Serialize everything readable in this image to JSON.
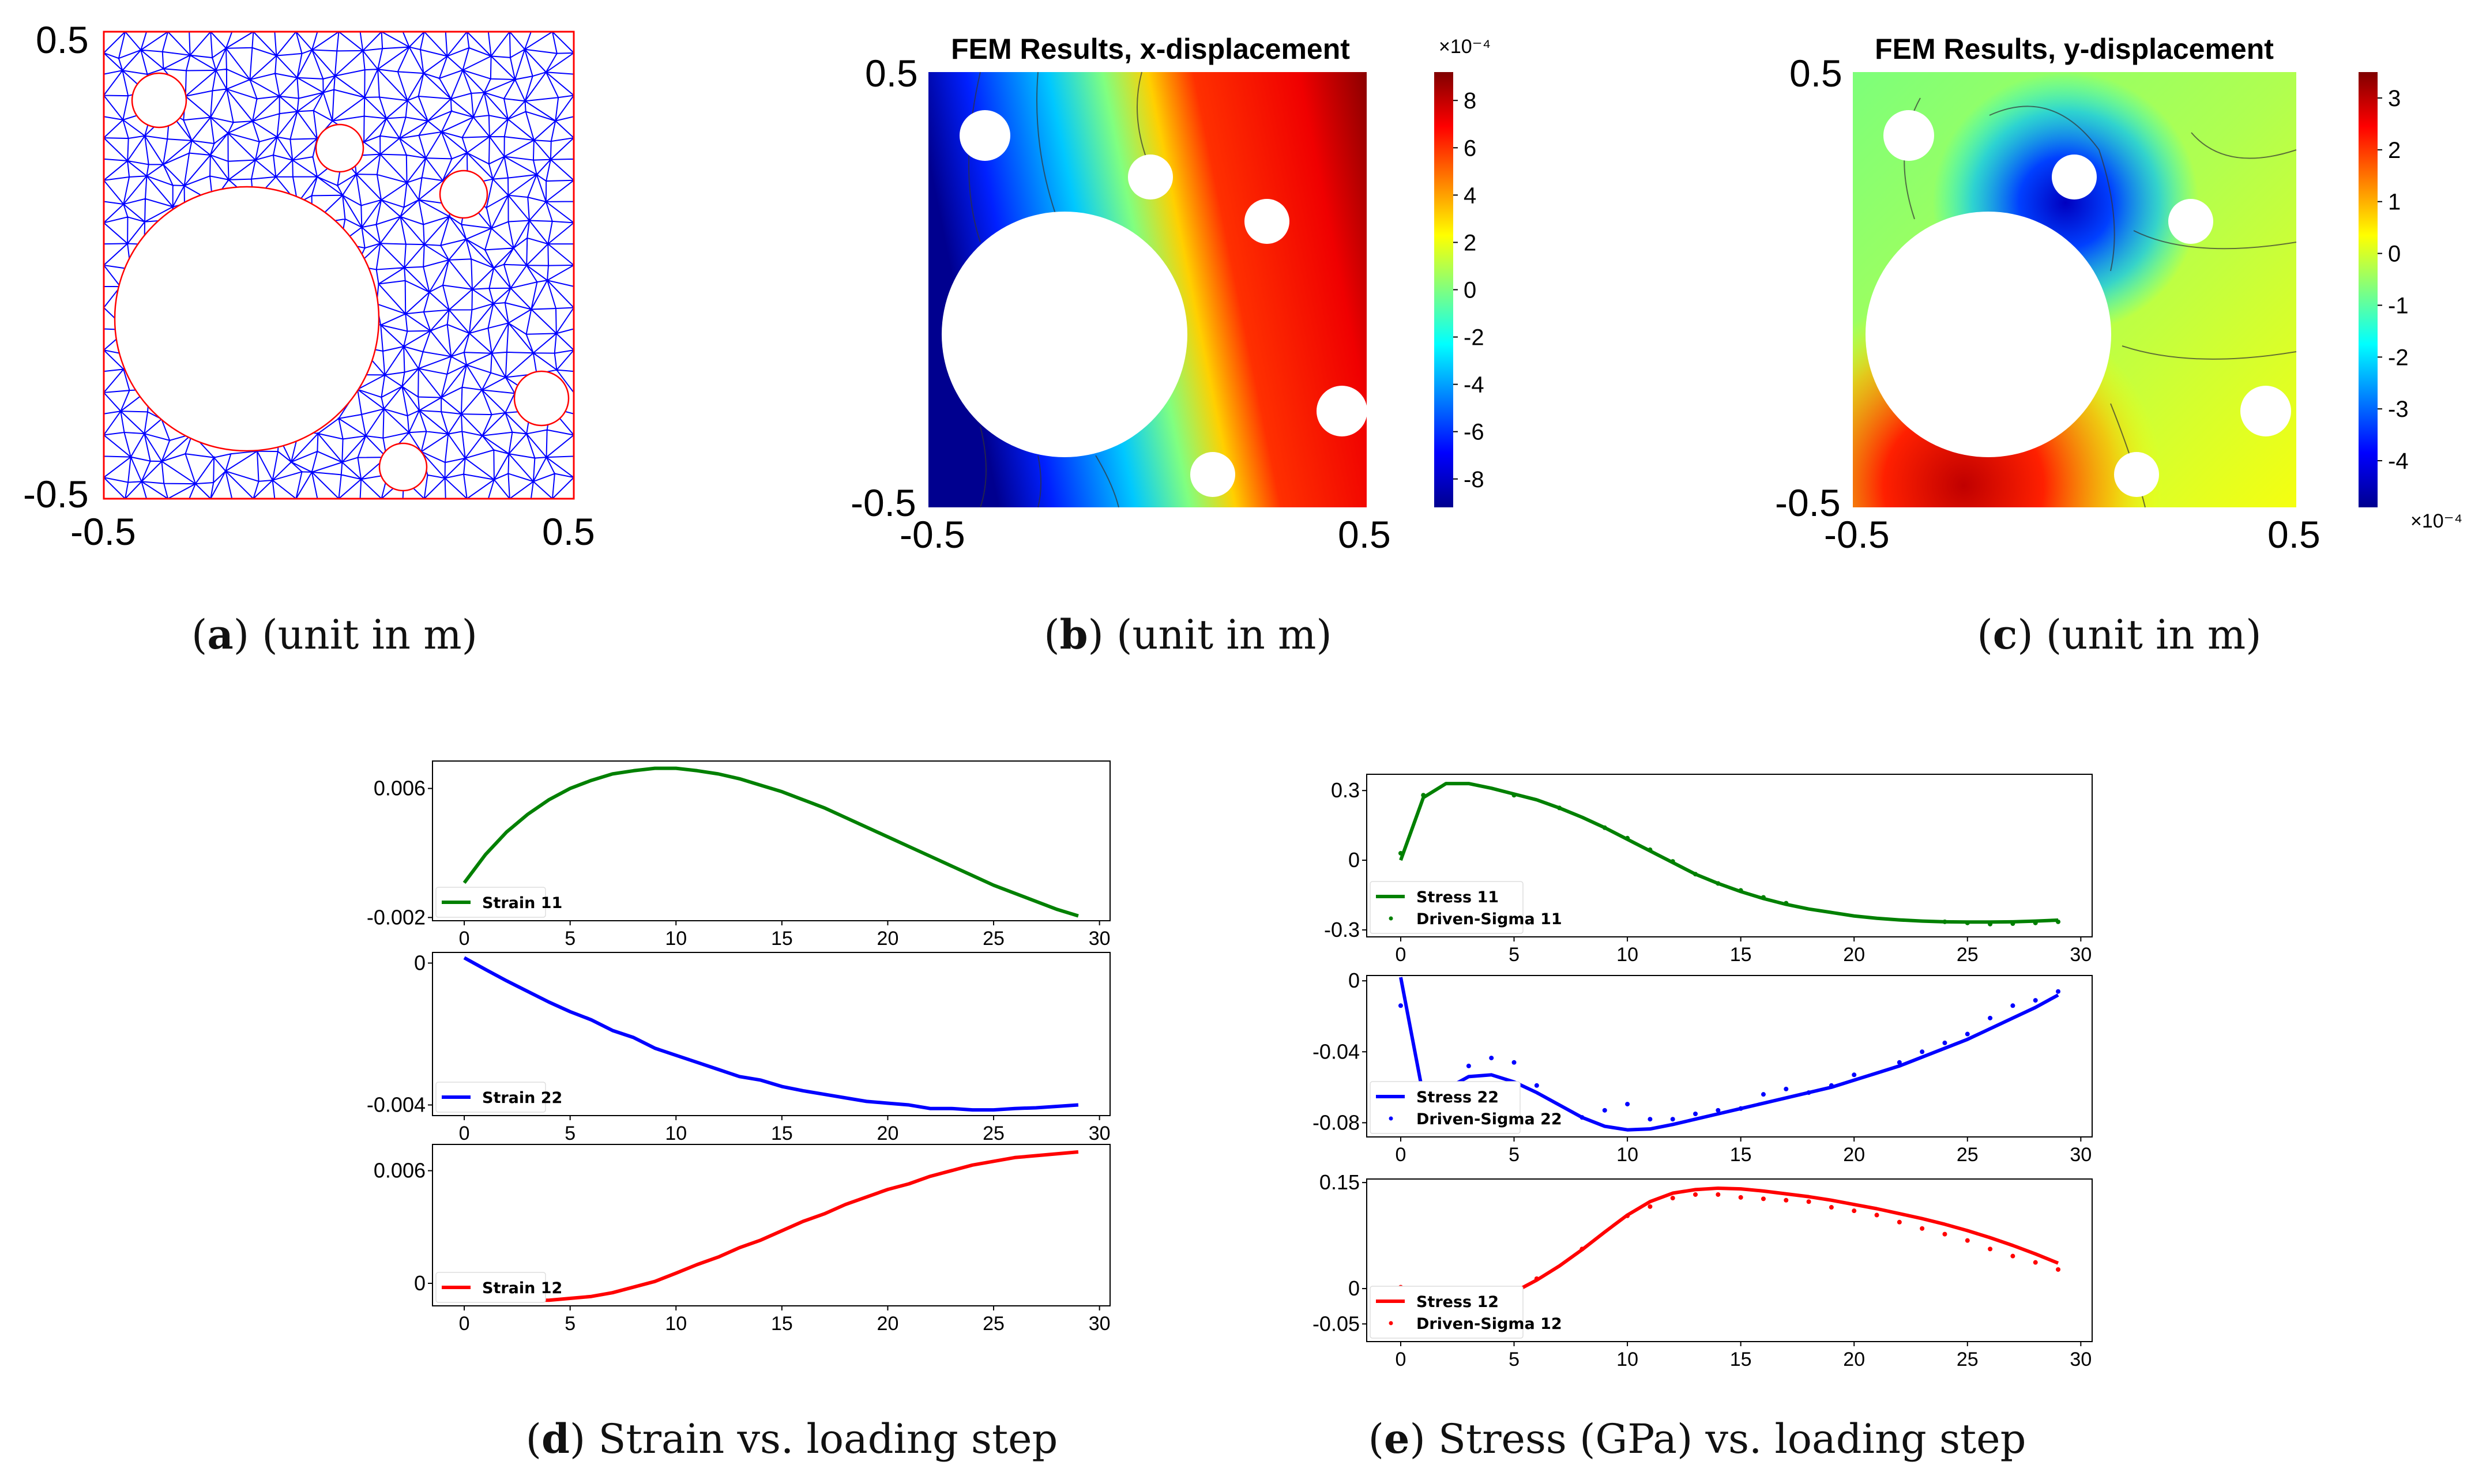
{
  "panels": {
    "a": {
      "caption_letter": "a",
      "caption_text": " (unit in m)",
      "y_top": "0.5",
      "y_bottom": "-0.5",
      "x_left": "-0.5",
      "x_right": "0.5"
    },
    "b": {
      "title": "FEM Results, x-displacement",
      "caption_letter": "b",
      "caption_text": " (unit in m)",
      "y_top": "0.5",
      "y_bottom": "-0.5",
      "x_left": "-0.5",
      "x_right": "0.5",
      "colorbar_ticks": [
        "8",
        "6",
        "4",
        "2",
        "0",
        "-2",
        "-4",
        "-6",
        "-8"
      ],
      "colorbar_exponent": "×10⁻⁴"
    },
    "c": {
      "title": "FEM Results, y-displacement",
      "caption_letter": "c",
      "caption_text": " (unit in m)",
      "y_top": "0.5",
      "y_bottom": "-0.5",
      "x_left": "-0.5",
      "x_right": "0.5",
      "colorbar_ticks": [
        "3",
        "2",
        "1",
        "0",
        "-1",
        "-2",
        "-3",
        "-4"
      ],
      "colorbar_exponent": "×10⁻⁴"
    },
    "d": {
      "caption_letter": "d",
      "caption_text": " Strain vs. loading step"
    },
    "e": {
      "caption_letter": "e",
      "caption_text": " Stress (GPa) vs. loading step"
    }
  },
  "colors": {
    "green": "#008000",
    "blue": "#0000ff",
    "red": "#ff0000",
    "mesh": "#0000ff",
    "boundary": "#ff0000"
  },
  "chart_data": [
    {
      "type": "line",
      "id": "strain11",
      "xlim": [
        -1.5,
        30.5
      ],
      "ylim": [
        -0.0022,
        0.0077
      ],
      "yticks": [
        "0.006",
        "-0.002"
      ],
      "ytick_values": [
        0.006,
        -0.002
      ],
      "xticks": [
        "0",
        "5",
        "10",
        "15",
        "20",
        "25",
        "30"
      ],
      "series": [
        {
          "name": "Strain 11",
          "color": "#008000",
          "x": [
            0,
            1,
            2,
            3,
            4,
            5,
            6,
            7,
            8,
            9,
            10,
            11,
            12,
            13,
            14,
            15,
            16,
            17,
            18,
            19,
            20,
            21,
            22,
            23,
            24,
            25,
            26,
            27,
            28,
            29
          ],
          "values": [
            0.00015,
            0.0019,
            0.0033,
            0.0044,
            0.0053,
            0.006,
            0.0065,
            0.0069,
            0.0071,
            0.00725,
            0.00725,
            0.0071,
            0.0069,
            0.0066,
            0.0062,
            0.0058,
            0.0053,
            0.0048,
            0.0042,
            0.0036,
            0.003,
            0.0024,
            0.0018,
            0.0012,
            0.0006,
            0.0,
            -0.0005,
            -0.001,
            -0.0015,
            -0.0019
          ]
        }
      ]
    },
    {
      "type": "line",
      "id": "strain22",
      "xlim": [
        -1.5,
        30.5
      ],
      "ylim": [
        -0.0043,
        0.0003
      ],
      "yticks": [
        "0",
        "-0.004"
      ],
      "ytick_values": [
        0,
        -0.004
      ],
      "xticks": [
        "0",
        "5",
        "10",
        "15",
        "20",
        "25",
        "30"
      ],
      "series": [
        {
          "name": "Strain 22",
          "color": "#0000ff",
          "x": [
            0,
            1,
            2,
            3,
            4,
            5,
            6,
            7,
            8,
            9,
            10,
            11,
            12,
            13,
            14,
            15,
            16,
            17,
            18,
            19,
            20,
            21,
            22,
            23,
            24,
            25,
            26,
            27,
            28,
            29
          ],
          "values": [
            0.00015,
            -0.00018,
            -0.0005,
            -0.0008,
            -0.0011,
            -0.00137,
            -0.0016,
            -0.0019,
            -0.0021,
            -0.0024,
            -0.0026,
            -0.0028,
            -0.003,
            -0.0032,
            -0.0033,
            -0.00348,
            -0.0036,
            -0.0037,
            -0.0038,
            -0.0039,
            -0.00395,
            -0.004,
            -0.0041,
            -0.0041,
            -0.00414,
            -0.00414,
            -0.0041,
            -0.00408,
            -0.00404,
            -0.004
          ]
        }
      ]
    },
    {
      "type": "line",
      "id": "strain12",
      "xlim": [
        -1.5,
        30.5
      ],
      "ylim": [
        -0.0012,
        0.0074
      ],
      "yticks": [
        "0.006",
        "0"
      ],
      "ytick_values": [
        0.006,
        0
      ],
      "xticks": [
        "0",
        "5",
        "10",
        "15",
        "20",
        "25",
        "30"
      ],
      "series": [
        {
          "name": "Strain 12",
          "color": "#ff0000",
          "x": [
            0,
            1,
            2,
            3,
            4,
            5,
            6,
            7,
            8,
            9,
            10,
            11,
            12,
            13,
            14,
            15,
            16,
            17,
            18,
            19,
            20,
            21,
            22,
            23,
            24,
            25,
            26,
            27,
            28,
            29
          ],
          "values": [
            -0.0003,
            -0.0006,
            -0.0008,
            -0.0009,
            -0.0009,
            -0.0008,
            -0.0007,
            -0.0005,
            -0.0002,
            0.0001,
            0.00054,
            0.001,
            0.0014,
            0.0019,
            0.0023,
            0.0028,
            0.0033,
            0.0037,
            0.0042,
            0.0046,
            0.005,
            0.0053,
            0.0057,
            0.006,
            0.0063,
            0.0065,
            0.0067,
            0.0068,
            0.0069,
            0.007
          ]
        }
      ]
    },
    {
      "type": "line",
      "id": "stress11",
      "xlim": [
        -1.5,
        30.5
      ],
      "ylim": [
        -0.33,
        0.37
      ],
      "yticks": [
        "0.3",
        "0",
        "-0.3"
      ],
      "ytick_values": [
        0.3,
        0,
        -0.3
      ],
      "xticks": [
        "0",
        "5",
        "10",
        "15",
        "20",
        "25",
        "30"
      ],
      "series": [
        {
          "name": "Stress 11",
          "color": "#008000",
          "x": [
            0,
            1,
            2,
            3,
            4,
            5,
            6,
            7,
            8,
            9,
            10,
            11,
            12,
            13,
            14,
            15,
            16,
            17,
            18,
            19,
            20,
            21,
            22,
            23,
            24,
            25,
            26,
            27,
            28,
            29
          ],
          "values": [
            0.0,
            0.27,
            0.33,
            0.33,
            0.31,
            0.285,
            0.26,
            0.225,
            0.185,
            0.14,
            0.09,
            0.04,
            -0.01,
            -0.06,
            -0.1,
            -0.135,
            -0.165,
            -0.19,
            -0.21,
            -0.225,
            -0.24,
            -0.25,
            -0.257,
            -0.262,
            -0.265,
            -0.266,
            -0.266,
            -0.265,
            -0.262,
            -0.258
          ]
        },
        {
          "name": "Driven-Sigma 11",
          "color": "#008000",
          "style": "dots",
          "x": [
            0,
            1,
            5,
            7,
            9,
            10,
            11,
            12,
            13,
            14,
            15,
            16,
            17,
            24,
            25,
            26,
            27,
            28,
            29
          ],
          "values": [
            0.03,
            0.28,
            0.28,
            0.225,
            0.14,
            0.095,
            0.045,
            -0.005,
            -0.06,
            -0.1,
            -0.13,
            -0.16,
            -0.185,
            -0.265,
            -0.27,
            -0.275,
            -0.273,
            -0.27,
            -0.265
          ]
        }
      ]
    },
    {
      "type": "line",
      "id": "stress22",
      "xlim": [
        -1.5,
        30.5
      ],
      "ylim": [
        -0.088,
        0.003
      ],
      "yticks": [
        "0",
        "-0.04",
        "-0.08"
      ],
      "ytick_values": [
        0,
        -0.04,
        -0.08
      ],
      "xticks": [
        "0",
        "5",
        "10",
        "15",
        "20",
        "25",
        "30"
      ],
      "series": [
        {
          "name": "Stress 22",
          "color": "#0000ff",
          "x": [
            0,
            1,
            2,
            3,
            4,
            5,
            6,
            7,
            8,
            9,
            10,
            11,
            12,
            13,
            14,
            15,
            16,
            17,
            18,
            19,
            20,
            21,
            22,
            23,
            24,
            25,
            26,
            27,
            28,
            29
          ],
          "values": [
            0.002,
            -0.065,
            -0.061,
            -0.054,
            -0.053,
            -0.057,
            -0.063,
            -0.07,
            -0.077,
            -0.082,
            -0.084,
            -0.0835,
            -0.081,
            -0.078,
            -0.075,
            -0.072,
            -0.069,
            -0.066,
            -0.063,
            -0.06,
            -0.056,
            -0.052,
            -0.048,
            -0.043,
            -0.038,
            -0.033,
            -0.027,
            -0.021,
            -0.015,
            -0.008
          ]
        },
        {
          "name": "Driven-Sigma 22",
          "color": "#0000ff",
          "style": "dots",
          "x": [
            0,
            3,
            4,
            5,
            6,
            8,
            9,
            10,
            11,
            12,
            13,
            14,
            15,
            16,
            17,
            18,
            19,
            20,
            22,
            23,
            24,
            25,
            26,
            27,
            28,
            29
          ],
          "values": [
            -0.014,
            -0.048,
            -0.0435,
            -0.046,
            -0.059,
            -0.077,
            -0.073,
            -0.0695,
            -0.078,
            -0.078,
            -0.075,
            -0.073,
            -0.072,
            -0.064,
            -0.061,
            -0.063,
            -0.059,
            -0.053,
            -0.046,
            -0.04,
            -0.035,
            -0.03,
            -0.021,
            -0.014,
            -0.011,
            -0.006
          ]
        }
      ]
    },
    {
      "type": "line",
      "id": "stress12",
      "xlim": [
        -1.5,
        30.5
      ],
      "ylim": [
        -0.075,
        0.155
      ],
      "yticks": [
        "0.15",
        "0",
        "-0.05"
      ],
      "ytick_values": [
        0.15,
        0,
        -0.05
      ],
      "xticks": [
        "0",
        "5",
        "10",
        "15",
        "20",
        "25",
        "30"
      ],
      "series": [
        {
          "name": "Stress 12",
          "color": "#ff0000",
          "x": [
            0,
            1,
            2,
            3,
            4,
            5,
            6,
            7,
            8,
            9,
            10,
            11,
            12,
            13,
            14,
            15,
            16,
            17,
            18,
            19,
            20,
            21,
            22,
            23,
            24,
            25,
            26,
            27,
            28,
            29
          ],
          "values": [
            0.001,
            -0.02,
            -0.025,
            -0.025,
            -0.02,
            -0.005,
            0.012,
            0.032,
            0.055,
            0.08,
            0.104,
            0.123,
            0.135,
            0.14,
            0.142,
            0.141,
            0.138,
            0.134,
            0.13,
            0.125,
            0.119,
            0.113,
            0.106,
            0.099,
            0.091,
            0.082,
            0.072,
            0.061,
            0.049,
            0.036
          ]
        },
        {
          "name": "Driven-Sigma 12",
          "color": "#ff0000",
          "style": "dots",
          "x": [
            0,
            5,
            6,
            8,
            10,
            11,
            12,
            13,
            14,
            15,
            16,
            17,
            18,
            19,
            20,
            21,
            22,
            23,
            24,
            25,
            26,
            27,
            28,
            29
          ],
          "values": [
            0.002,
            -0.001,
            0.014,
            0.056,
            0.103,
            0.116,
            0.128,
            0.133,
            0.133,
            0.129,
            0.127,
            0.125,
            0.123,
            0.115,
            0.11,
            0.104,
            0.094,
            0.085,
            0.077,
            0.068,
            0.056,
            0.046,
            0.037,
            0.027
          ]
        }
      ]
    }
  ]
}
